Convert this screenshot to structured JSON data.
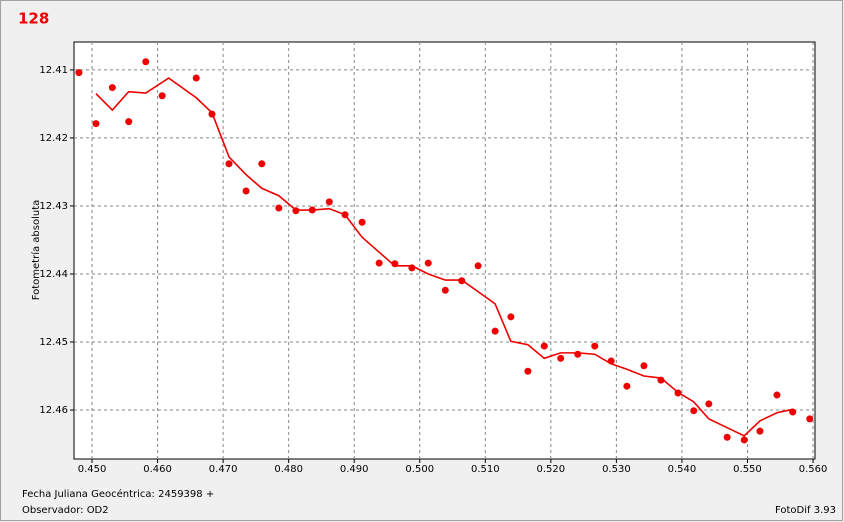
{
  "chart_data": {
    "type": "scatter",
    "title": "128",
    "ylabel": "Fotometría absoluta",
    "xlabel": "Fecha Juliana Geocéntrica: 2459398 +",
    "observer": "Observador: OD2",
    "software": "FotoDif 3.93",
    "xlim": [
      0.44725,
      0.5603
    ],
    "ylim": [
      12.4672,
      12.4059
    ],
    "grid": true,
    "color": "#ee0000",
    "xticks": [
      {
        "value": 0.45,
        "label": "0.450"
      },
      {
        "value": 0.46,
        "label": "0.460"
      },
      {
        "value": 0.47,
        "label": "0.470"
      },
      {
        "value": 0.48,
        "label": "0.480"
      },
      {
        "value": 0.49,
        "label": "0.490"
      },
      {
        "value": 0.5,
        "label": "0.500"
      },
      {
        "value": 0.51,
        "label": "0.510"
      },
      {
        "value": 0.52,
        "label": "0.520"
      },
      {
        "value": 0.53,
        "label": "0.530"
      },
      {
        "value": 0.54,
        "label": "0.540"
      },
      {
        "value": 0.55,
        "label": "0.550"
      },
      {
        "value": 0.56,
        "label": "0.560"
      }
    ],
    "yticks": [
      12.41,
      12.42,
      12.43,
      12.44,
      12.45,
      12.46
    ],
    "series": [
      {
        "mode": "markers",
        "color": "#ee0000",
        "x": [
          0.448,
          0.4506,
          0.4531,
          0.4556,
          0.4582,
          0.4607,
          0.4659,
          0.4683,
          0.4709,
          0.4735,
          0.4759,
          0.4785,
          0.4811,
          0.4836,
          0.4862,
          0.4886,
          0.4912,
          0.4938,
          0.4962,
          0.4988,
          0.5013,
          0.5039,
          0.5064,
          0.5089,
          0.5115,
          0.5139,
          0.5165,
          0.519,
          0.5215,
          0.5241,
          0.5267,
          0.5292,
          0.5316,
          0.5342,
          0.5368,
          0.5394,
          0.5418,
          0.5441,
          0.5469,
          0.5495,
          0.5519,
          0.5545,
          0.5569,
          0.5595
        ],
        "values": [
          12.4104,
          12.4179,
          12.4126,
          12.4176,
          12.4088,
          12.4138,
          12.4112,
          12.4165,
          12.4238,
          12.4278,
          12.4238,
          12.4303,
          12.4307,
          12.4306,
          12.4294,
          12.4313,
          12.4324,
          12.4384,
          12.4385,
          12.4391,
          12.4384,
          12.4424,
          12.441,
          12.4388,
          12.4484,
          12.4463,
          12.4543,
          12.4506,
          12.4524,
          12.4518,
          12.4506,
          12.4528,
          12.4565,
          12.4535,
          12.4556,
          12.4575,
          12.4601,
          12.4591,
          12.464,
          12.4644,
          12.4631,
          12.4578,
          12.4603,
          12.4613
        ]
      },
      {
        "mode": "line",
        "color": "#ee0000",
        "x": [
          0.4506,
          0.4531,
          0.4556,
          0.4582,
          0.4617,
          0.4659,
          0.4683,
          0.4709,
          0.4735,
          0.4759,
          0.4785,
          0.4811,
          0.4836,
          0.4862,
          0.4886,
          0.4912,
          0.4938,
          0.4962,
          0.4988,
          0.5013,
          0.5039,
          0.5064,
          0.5089,
          0.5115,
          0.5139,
          0.5165,
          0.519,
          0.5215,
          0.5241,
          0.5267,
          0.5292,
          0.5316,
          0.5342,
          0.5368,
          0.5394,
          0.5418,
          0.5441,
          0.5469,
          0.5495,
          0.5519,
          0.5545,
          0.5569
        ],
        "values": [
          12.4135,
          12.4159,
          12.4132,
          12.4134,
          12.4112,
          12.4141,
          12.4163,
          12.4228,
          12.4254,
          12.4274,
          12.4285,
          12.4306,
          12.4306,
          12.4304,
          12.4313,
          12.4346,
          12.4368,
          12.4388,
          12.4388,
          12.44,
          12.4409,
          12.4409,
          12.4426,
          12.4444,
          12.4499,
          12.4504,
          12.4524,
          12.4516,
          12.4516,
          12.4518,
          12.4532,
          12.454,
          12.455,
          12.4553,
          12.4574,
          12.4588,
          12.4613,
          12.4626,
          12.4638,
          12.4616,
          12.4604,
          12.4599
        ]
      }
    ]
  }
}
